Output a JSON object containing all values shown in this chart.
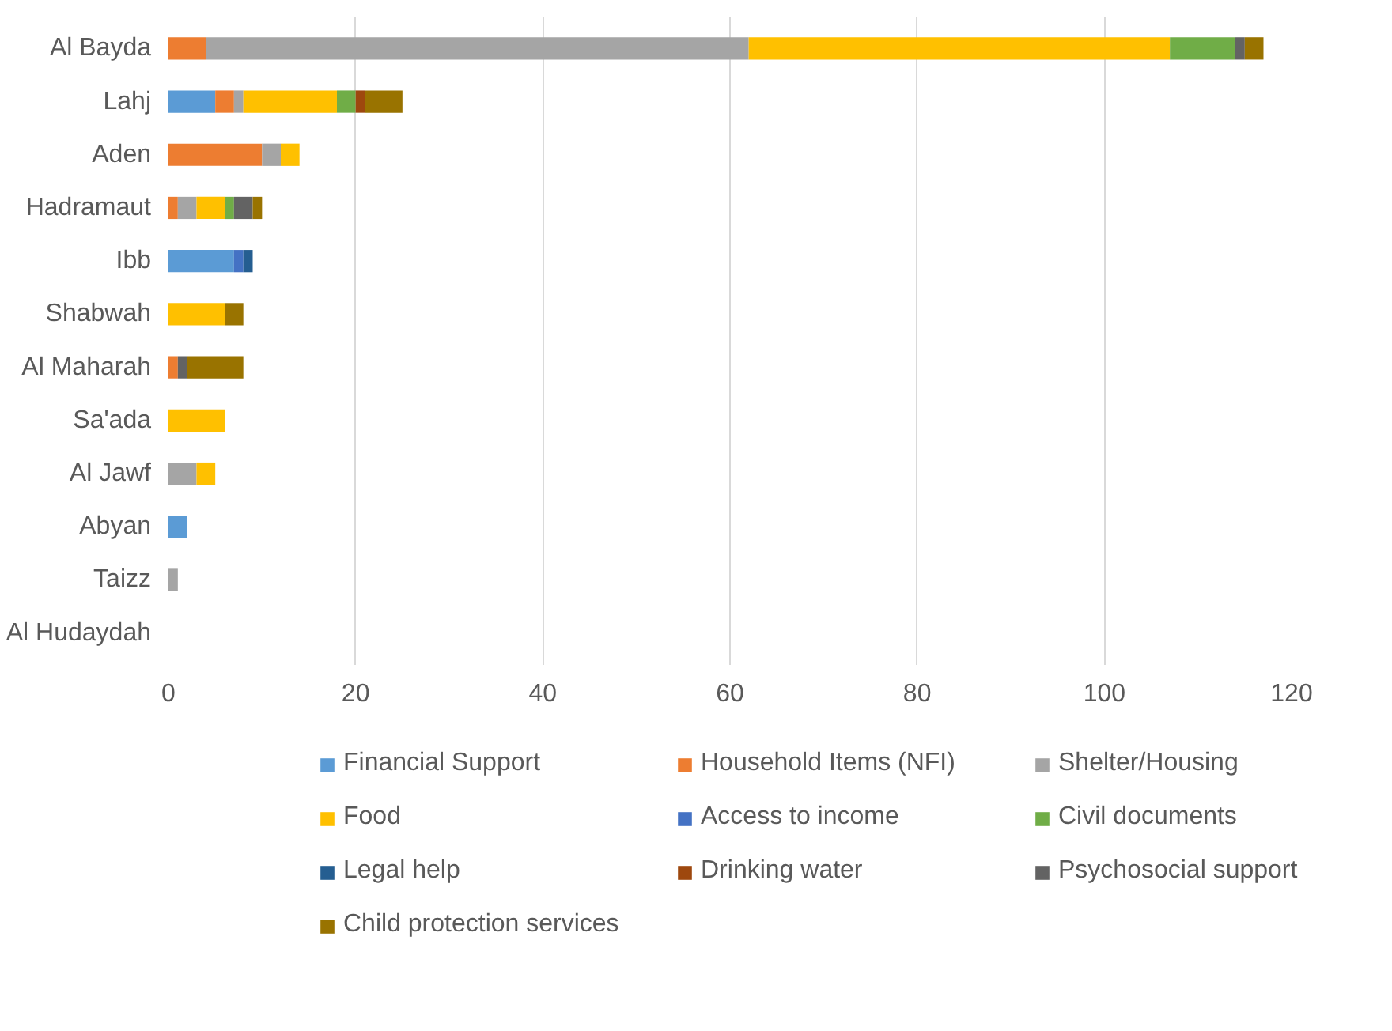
{
  "chart_data": {
    "type": "bar",
    "orientation": "horizontal",
    "stacked": true,
    "categories": [
      "Al Bayda",
      "Lahj",
      "Aden",
      "Hadramaut",
      "Ibb",
      "Shabwah",
      "Al Maharah",
      "Sa'ada",
      "Al Jawf",
      "Abyan",
      "Taizz",
      "Al Hudaydah"
    ],
    "series": [
      {
        "name": "Financial Support",
        "color": "#5b9bd5",
        "values": [
          0,
          5,
          0,
          0,
          7,
          0,
          0,
          0,
          0,
          2,
          0,
          0
        ]
      },
      {
        "name": "Household Items (NFI)",
        "color": "#ed7d31",
        "values": [
          4,
          2,
          10,
          1,
          0,
          0,
          1,
          0,
          0,
          0,
          0,
          0
        ]
      },
      {
        "name": "Shelter/Housing",
        "color": "#a5a5a5",
        "values": [
          58,
          1,
          2,
          2,
          0,
          0,
          0,
          0,
          3,
          0,
          1,
          0
        ]
      },
      {
        "name": "Food",
        "color": "#ffc000",
        "values": [
          45,
          10,
          2,
          3,
          0,
          6,
          0,
          6,
          2,
          0,
          0,
          0
        ]
      },
      {
        "name": "Access to income",
        "color": "#4472c4",
        "values": [
          0,
          0,
          0,
          0,
          1,
          0,
          0,
          0,
          0,
          0,
          0,
          0
        ]
      },
      {
        "name": "Civil documents",
        "color": "#70ad47",
        "values": [
          7,
          2,
          0,
          1,
          0,
          0,
          0,
          0,
          0,
          0,
          0,
          0
        ]
      },
      {
        "name": "Legal help",
        "color": "#255e91",
        "values": [
          0,
          0,
          0,
          0,
          1,
          0,
          0,
          0,
          0,
          0,
          0,
          0
        ]
      },
      {
        "name": "Drinking water",
        "color": "#9e480e",
        "values": [
          0,
          1,
          0,
          0,
          0,
          0,
          0,
          0,
          0,
          0,
          0,
          0
        ]
      },
      {
        "name": "Psychosocial support",
        "color": "#636363",
        "values": [
          1,
          0,
          0,
          2,
          0,
          0,
          1,
          0,
          0,
          0,
          0,
          0
        ]
      },
      {
        "name": "Child protection services",
        "color": "#997300",
        "values": [
          2,
          4,
          0,
          1,
          0,
          2,
          6,
          0,
          0,
          0,
          0,
          0
        ]
      }
    ],
    "xlim": [
      0,
      120
    ],
    "xticks": [
      0,
      20,
      40,
      60,
      80,
      100,
      120
    ],
    "grid": "x",
    "legend": "bottom"
  }
}
